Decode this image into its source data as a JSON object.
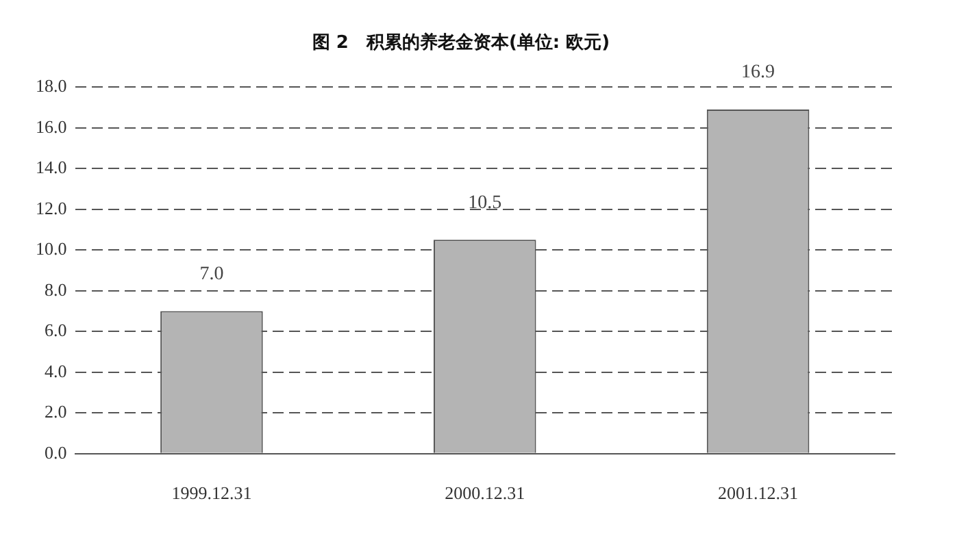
{
  "chart_data": {
    "type": "bar",
    "title": "图 2　积累的养老金资本(单位: 欧元)",
    "categories": [
      "1999.12.31",
      "2000.12.31",
      "2001.12.31"
    ],
    "values": [
      7.0,
      10.5,
      16.9
    ],
    "value_labels": [
      "7.0",
      "10.5",
      "16.9"
    ],
    "color": "#b4b4b4",
    "ylim": [
      0,
      18
    ],
    "yticks": [
      {
        "value": 0,
        "label": "0.0"
      },
      {
        "value": 2,
        "label": "2.0"
      },
      {
        "value": 4,
        "label": "4.0"
      },
      {
        "value": 6,
        "label": "6.0"
      },
      {
        "value": 8,
        "label": "8.0"
      },
      {
        "value": 10,
        "label": "10.0"
      },
      {
        "value": 12,
        "label": "12.0"
      },
      {
        "value": 14,
        "label": "14.0"
      },
      {
        "value": 16,
        "label": "16.0"
      },
      {
        "value": 18,
        "label": "18.0"
      }
    ],
    "grid": "y"
  }
}
